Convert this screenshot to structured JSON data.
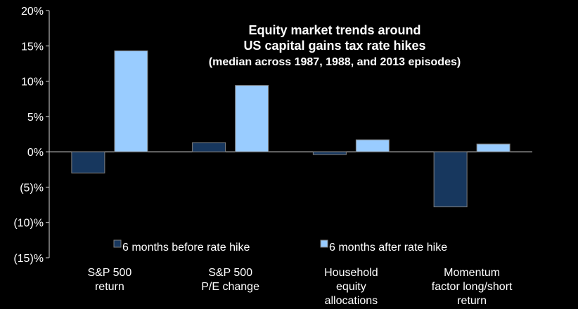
{
  "chart_data": {
    "type": "bar",
    "title": "Equity market trends around",
    "title_line2": "US capital gains tax rate hikes",
    "subtitle": "(median across 1987, 1988, and 2013 episodes)",
    "categories": [
      [
        "S&P 500",
        "return"
      ],
      [
        "S&P 500",
        "P/E change"
      ],
      [
        "Household",
        "equity",
        "allocations"
      ],
      [
        "Momentum",
        "factor long/short",
        "return"
      ]
    ],
    "series": [
      {
        "name": "6 months before rate hike",
        "color": "#17375e",
        "values": [
          -3.0,
          1.3,
          -0.4,
          -7.8
        ]
      },
      {
        "name": "6 months after rate hike",
        "color": "#99ccff",
        "values": [
          14.3,
          9.4,
          1.7,
          1.1
        ]
      }
    ],
    "ylim": [
      -15,
      20
    ],
    "yticks": [
      20,
      15,
      10,
      5,
      0,
      -5,
      -10,
      -15
    ],
    "ytick_labels": [
      "20%",
      "15%",
      "10%",
      "5%",
      "0%",
      "(5)%",
      "(10)%",
      "(15)%"
    ],
    "legend_position": "bottom-center",
    "grid": false,
    "xlabel": "",
    "ylabel": ""
  }
}
